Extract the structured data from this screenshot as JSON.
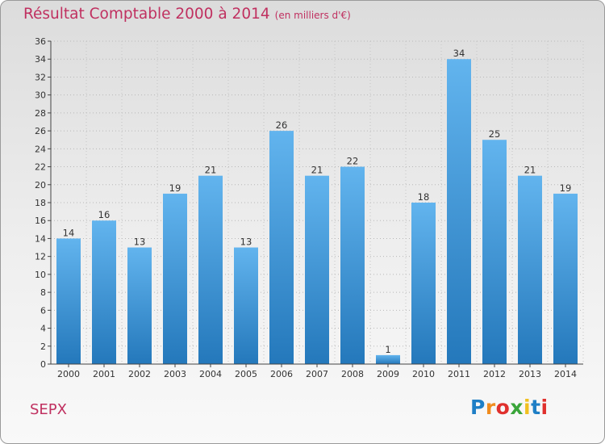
{
  "header": {
    "title": "Résultat Comptable 2000 à 2014",
    "unit": "(en milliers d'€)"
  },
  "footer": {
    "commune": "SEPX",
    "logo": "Proxiti"
  },
  "colors": {
    "title": "#c03060",
    "bar_top": "#62b4ee",
    "bar_bottom": "#2478bb"
  },
  "chart_data": {
    "type": "bar",
    "title": "Résultat Comptable 2000 à 2014",
    "subtitle": "(en milliers d'€)",
    "xlabel": "",
    "ylabel": "",
    "ylim": [
      0,
      36
    ],
    "yticks": [
      0,
      2,
      4,
      6,
      8,
      10,
      12,
      14,
      16,
      18,
      20,
      22,
      24,
      26,
      28,
      30,
      32,
      34,
      36
    ],
    "grid": true,
    "categories": [
      "2000",
      "2001",
      "2002",
      "2003",
      "2004",
      "2005",
      "2006",
      "2007",
      "2008",
      "2009",
      "2010",
      "2011",
      "2012",
      "2013",
      "2014"
    ],
    "values": [
      14,
      16,
      13,
      19,
      21,
      13,
      26,
      21,
      22,
      1,
      18,
      34,
      25,
      21,
      19
    ]
  }
}
